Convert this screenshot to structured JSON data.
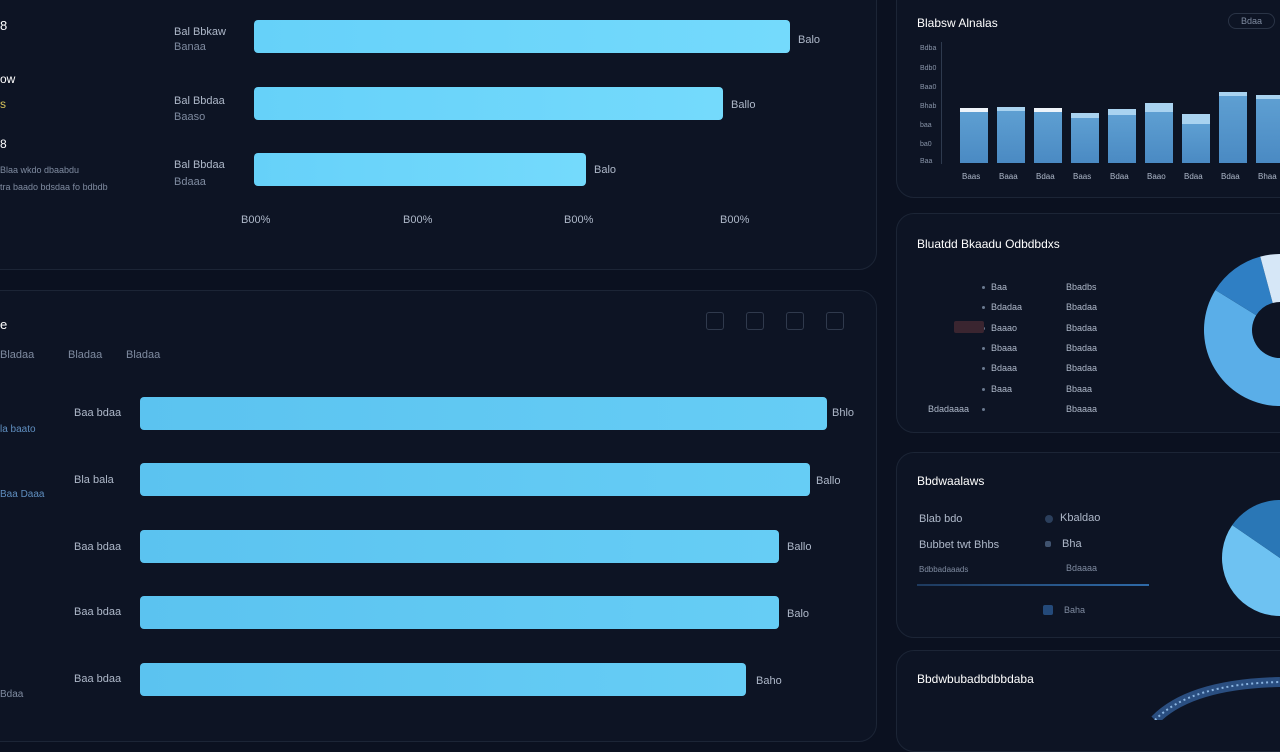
{
  "top_left": {
    "side_labels": [
      "8",
      "ow",
      "s",
      "8",
      "Blaa wkdo dbaabdu",
      "tra baado bdsdaa fo bdbdb"
    ],
    "rows": [
      {
        "label1": "Bal Bbkaw",
        "label2": "Banaa",
        "value_label": "Balo",
        "value": 0.835
      },
      {
        "label1": "Bal Bbdaa",
        "label2": "Baaso",
        "value_label": "Ballo",
        "value": 0.73
      },
      {
        "label1": "Bal Bbdaa",
        "label2": "Bdaaa",
        "value_label": "Balo",
        "value": 0.515
      }
    ],
    "axis_ticks": [
      "B00%",
      "B00%",
      "B00%",
      "B00%"
    ]
  },
  "bottom_left": {
    "title": "e",
    "tabs": [
      "Bladaa",
      "Bladaa",
      "Bladaa"
    ],
    "side_labels": [
      "la baato",
      "Baa Daaa",
      "Bdaa"
    ],
    "rows": [
      {
        "label": "Baa bdaa",
        "value_label": "Bhlo",
        "value": 0.86
      },
      {
        "label": "Bla bala",
        "value_label": "Ballo",
        "value": 0.84
      },
      {
        "label": "Baa bdaa",
        "value_label": "Ballo",
        "value": 0.8
      },
      {
        "label": "Baa bdaa",
        "value_label": "Balo",
        "value": 0.8
      },
      {
        "label": "Baa bdaa",
        "value_label": "Baho",
        "value": 0.76
      }
    ],
    "toolbar_icons": [
      "copy-icon",
      "print-icon",
      "share-icon",
      "export-icon"
    ]
  },
  "top_right": {
    "title": "Blabsw Alnalas",
    "button": "Bdaa",
    "y_ticks": [
      "Bdba",
      "Bdb0",
      "Baa0",
      "Bhab",
      "baa",
      "ba0",
      "Baa"
    ],
    "x_labels": [
      "Baas",
      "Baaa",
      "Bdaa",
      "Baas",
      "Bdaa",
      "Baao",
      "Bdaa",
      "Bdaa",
      "Bhaa"
    ],
    "bar_base": [
      0.71,
      0.75,
      0.72,
      0.63,
      0.67,
      0.74,
      0.57,
      0.94,
      0.9
    ],
    "bar_top": [
      0.1,
      0.0,
      0.08,
      0.22,
      0.25,
      0.35,
      0.44,
      0.06,
      0.0
    ]
  },
  "middle_right": {
    "title": "Bluatdd Bkaadu Odbdbdxs",
    "legend_col1": [
      "Baa",
      "Bdadaa",
      "Baaao",
      "Bbaaa",
      "Bdaaa",
      "Baaa",
      "Bdadaaaa"
    ],
    "legend_col2": [
      "Bbadbs",
      "Bbadaa",
      "Bbadaa",
      "Bbadaa",
      "Bbadaa",
      "Bbaaa",
      "Bbaaaa"
    ],
    "donut": [
      {
        "color": "#5aaee8",
        "value": 62
      },
      {
        "color": "#2f7fc4",
        "value": 12
      },
      {
        "color": "#d6e7f7",
        "value": 16
      },
      {
        "color": "#8fa6e8",
        "value": 10
      }
    ]
  },
  "lower_right": {
    "title": "Bbdwaalaws",
    "rows_left": [
      "Blab bdo",
      "Bubbet twt Bhbs",
      "Bdbbadaaads"
    ],
    "rows_right": [
      "Kbaldao",
      "Bha",
      "Bdaaaa",
      "Baha"
    ],
    "pie": [
      {
        "color": "#6ec2f2",
        "value": 58
      },
      {
        "color": "#2a77b6",
        "value": 24
      },
      {
        "color": "#144a7e",
        "value": 18
      }
    ]
  },
  "bottom_right": {
    "title": "Bbdwbubadbdbbdaba"
  },
  "colors": {
    "background": "#0b1120",
    "bar_accent": "#6ad4fa",
    "panel_border": "#1c2536"
  }
}
